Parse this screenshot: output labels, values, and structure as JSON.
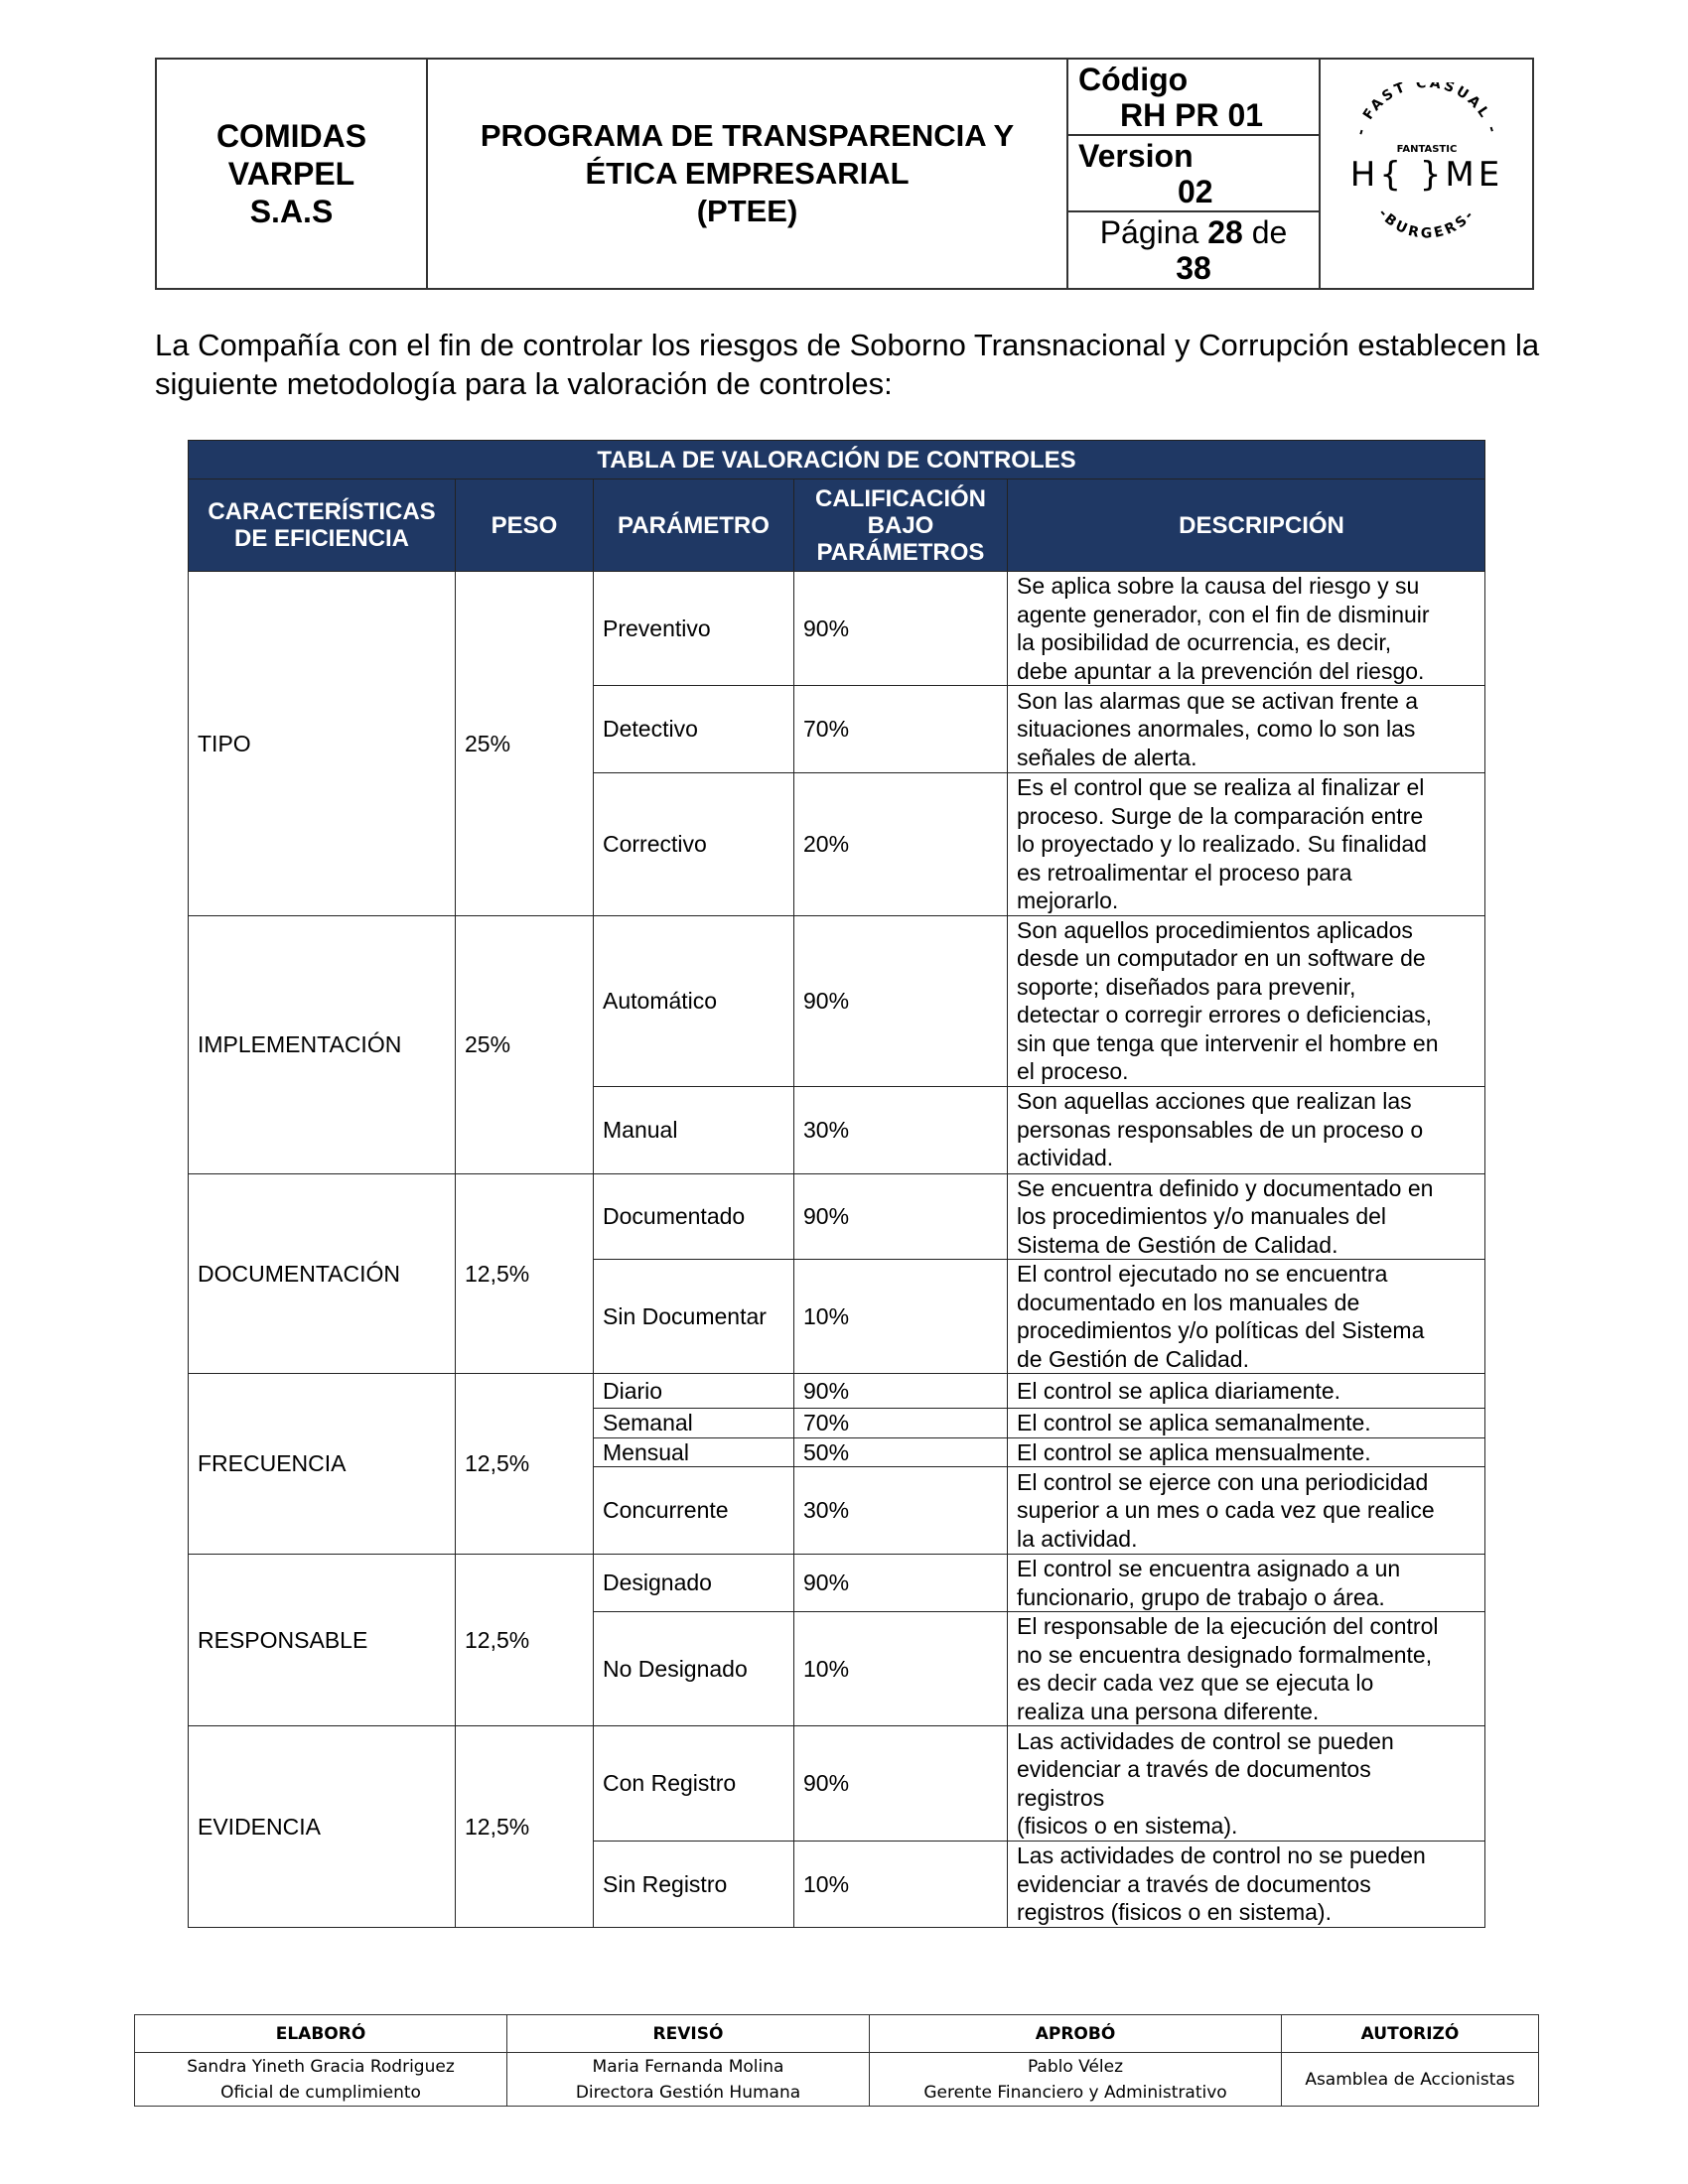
{
  "header": {
    "company": "COMIDAS VARPEL S.A.S",
    "program_title_line1": "PROGRAMA DE TRANSPARENCIA Y",
    "program_title_line2": "ÉTICA EMPRESARIAL",
    "program_title_line3": "(PTEE)",
    "code_label": "Código",
    "code_value": "RH PR 01",
    "version_label": "Version",
    "version_value": "02",
    "page_label": "Página",
    "page_number": "28",
    "page_of": "de",
    "page_total": "38",
    "logo": {
      "top_text": "FAST CASUAL",
      "sub_text": "FANTASTIC",
      "main_text": "H{ }ME",
      "bottom_text": "BURGERS"
    }
  },
  "intro": "La Compañía con el fin de controlar los riesgos de Soborno Transnacional y Corrupción establecen la siguiente metodología para la valoración de controles:",
  "table": {
    "title": "TABLA DE VALORACIÓN DE CONTROLES",
    "header_color": "#1f3864",
    "columns": [
      "CARACTERÍSTICAS\nDE EFICIENCIA",
      "PESO",
      "PARÁMETRO",
      "CALIFICACIÓN\nBAJO\nPARÁMETROS",
      "DESCRIPCIÓN"
    ],
    "groups": [
      {
        "characteristic": "TIPO",
        "weight": "25%",
        "params": [
          {
            "name": "Preventivo",
            "score": "90%",
            "desc": "Se aplica sobre la causa del riesgo y su\nagente generador, con el fin de disminuir\nla posibilidad de ocurrencia, es decir,\ndebe apuntar a la prevención del riesgo."
          },
          {
            "name": "Detectivo",
            "score": "70%",
            "desc": "Son las alarmas que se activan frente a\nsituaciones anormales, como lo son las\nseñales de alerta."
          },
          {
            "name": "Correctivo",
            "score": "20%",
            "desc": "Es el control que se realiza al finalizar el\nproceso. Surge de la comparación entre\nlo proyectado y lo realizado. Su finalidad\nes retroalimentar el proceso para\nmejorarlo."
          }
        ]
      },
      {
        "characteristic": "IMPLEMENTACIÓN",
        "weight": "25%",
        "params": [
          {
            "name": "Automático",
            "score": "90%",
            "desc": "Son aquellos procedimientos aplicados\ndesde un computador en un software de\nsoporte; diseñados para prevenir,\ndetectar o corregir errores o deficiencias,\nsin que tenga que intervenir el hombre en\nel proceso."
          },
          {
            "name": "Manual",
            "score": "30%",
            "desc": "Son aquellas acciones que realizan las\npersonas responsables de un proceso o\nactividad."
          }
        ]
      },
      {
        "characteristic": "DOCUMENTACIÓN",
        "weight": "12,5%",
        "params": [
          {
            "name": "Documentado",
            "score": "90%",
            "desc": "Se encuentra definido y documentado en\nlos procedimientos y/o manuales del\nSistema de Gestión de Calidad."
          },
          {
            "name": "Sin Documentar",
            "score": "10%",
            "desc": "El control ejecutado no se encuentra\ndocumentado en los manuales de\nprocedimientos y/o políticas del Sistema\nde Gestión de Calidad."
          }
        ]
      },
      {
        "characteristic": "FRECUENCIA",
        "weight": "12,5%",
        "params": [
          {
            "name": "Diario",
            "score": "90%",
            "desc": "El control se aplica diariamente."
          },
          {
            "name": "Semanal",
            "score": "70%",
            "desc": "El control se aplica semanalmente."
          },
          {
            "name": "Mensual",
            "score": "50%",
            "desc": "El control se aplica mensualmente."
          },
          {
            "name": "Concurrente",
            "score": "30%",
            "desc": "El control se ejerce con una periodicidad\nsuperior a un mes o cada vez que realice\nla actividad."
          }
        ]
      },
      {
        "characteristic": "RESPONSABLE",
        "weight": "12,5%",
        "params": [
          {
            "name": "Designado",
            "score": "90%",
            "desc": "El control se encuentra asignado a un\nfuncionario, grupo de trabajo o área."
          },
          {
            "name": "No Designado",
            "score": "10%",
            "desc": "El responsable de la ejecución del control\nno se encuentra designado formalmente,\nes decir cada vez que se ejecuta lo\nrealiza una persona diferente."
          }
        ]
      },
      {
        "characteristic": "EVIDENCIA",
        "weight": "12,5%",
        "params": [
          {
            "name": "Con Registro",
            "score": "90%",
            "desc": "Las actividades de control se pueden\nevidenciar a través de documentos\nregistros\n(fisicos o en sistema)."
          },
          {
            "name": "Sin Registro",
            "score": "10%",
            "desc": "Las actividades de control no se pueden\nevidenciar a través de documentos\nregistros (fisicos o en sistema)."
          }
        ]
      }
    ]
  },
  "footer": {
    "headers": [
      "ELABORÓ",
      "REVISÓ",
      "APROBÓ",
      "AUTORIZÓ"
    ],
    "elaboro": [
      "Sandra Yineth Gracia Rodriguez",
      "Oficial de cumplimiento"
    ],
    "reviso": [
      "Maria Fernanda Molina",
      "Directora Gestión Humana"
    ],
    "aprobo": [
      "Pablo Vélez",
      "Gerente Financiero y Administrativo"
    ],
    "autorizo": "Asamblea de Accionistas"
  }
}
